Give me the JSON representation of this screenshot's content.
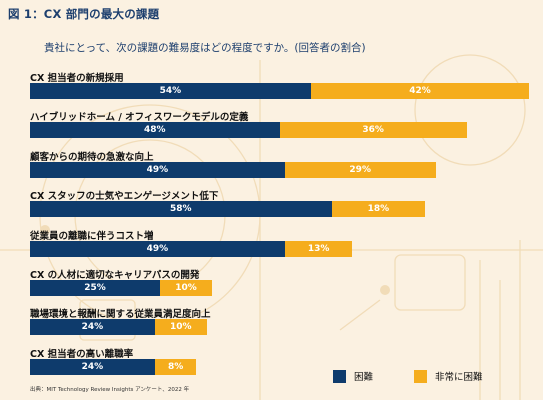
{
  "figure": {
    "title": "図 1：CX 部門の最大の課題",
    "subtitle": "貴社にとって、次の課題の難易度はどの程度ですか。(回答者の割合)",
    "source": "出典：MIT Technology Review Insights アンケート、2022 年"
  },
  "colors": {
    "series1": "#0e3b6c",
    "series2": "#f5ad1d",
    "background": "#fbf1e1"
  },
  "chart_data": {
    "type": "bar",
    "orientation": "horizontal",
    "stacked": true,
    "categories": [
      "CX 担当者の新規採用",
      "ハイブリッドホーム / オフィスワークモデルの定義",
      "顧客からの期待の急激な向上",
      "CX スタッフの士気やエンゲージメント低下",
      "従業員の離職に伴うコスト増",
      "CX の人材に適切なキャリアパスの開発",
      "職場環境と報酬に関する従業員満足度向上",
      "CX 担当者の高い離職率"
    ],
    "series": [
      {
        "name": "困難",
        "values": [
          54,
          48,
          49,
          58,
          49,
          25,
          24,
          24
        ]
      },
      {
        "name": "非常に困難",
        "values": [
          42,
          36,
          29,
          18,
          13,
          10,
          10,
          8
        ]
      }
    ],
    "value_suffix": "%",
    "legend": "bottom-right"
  }
}
